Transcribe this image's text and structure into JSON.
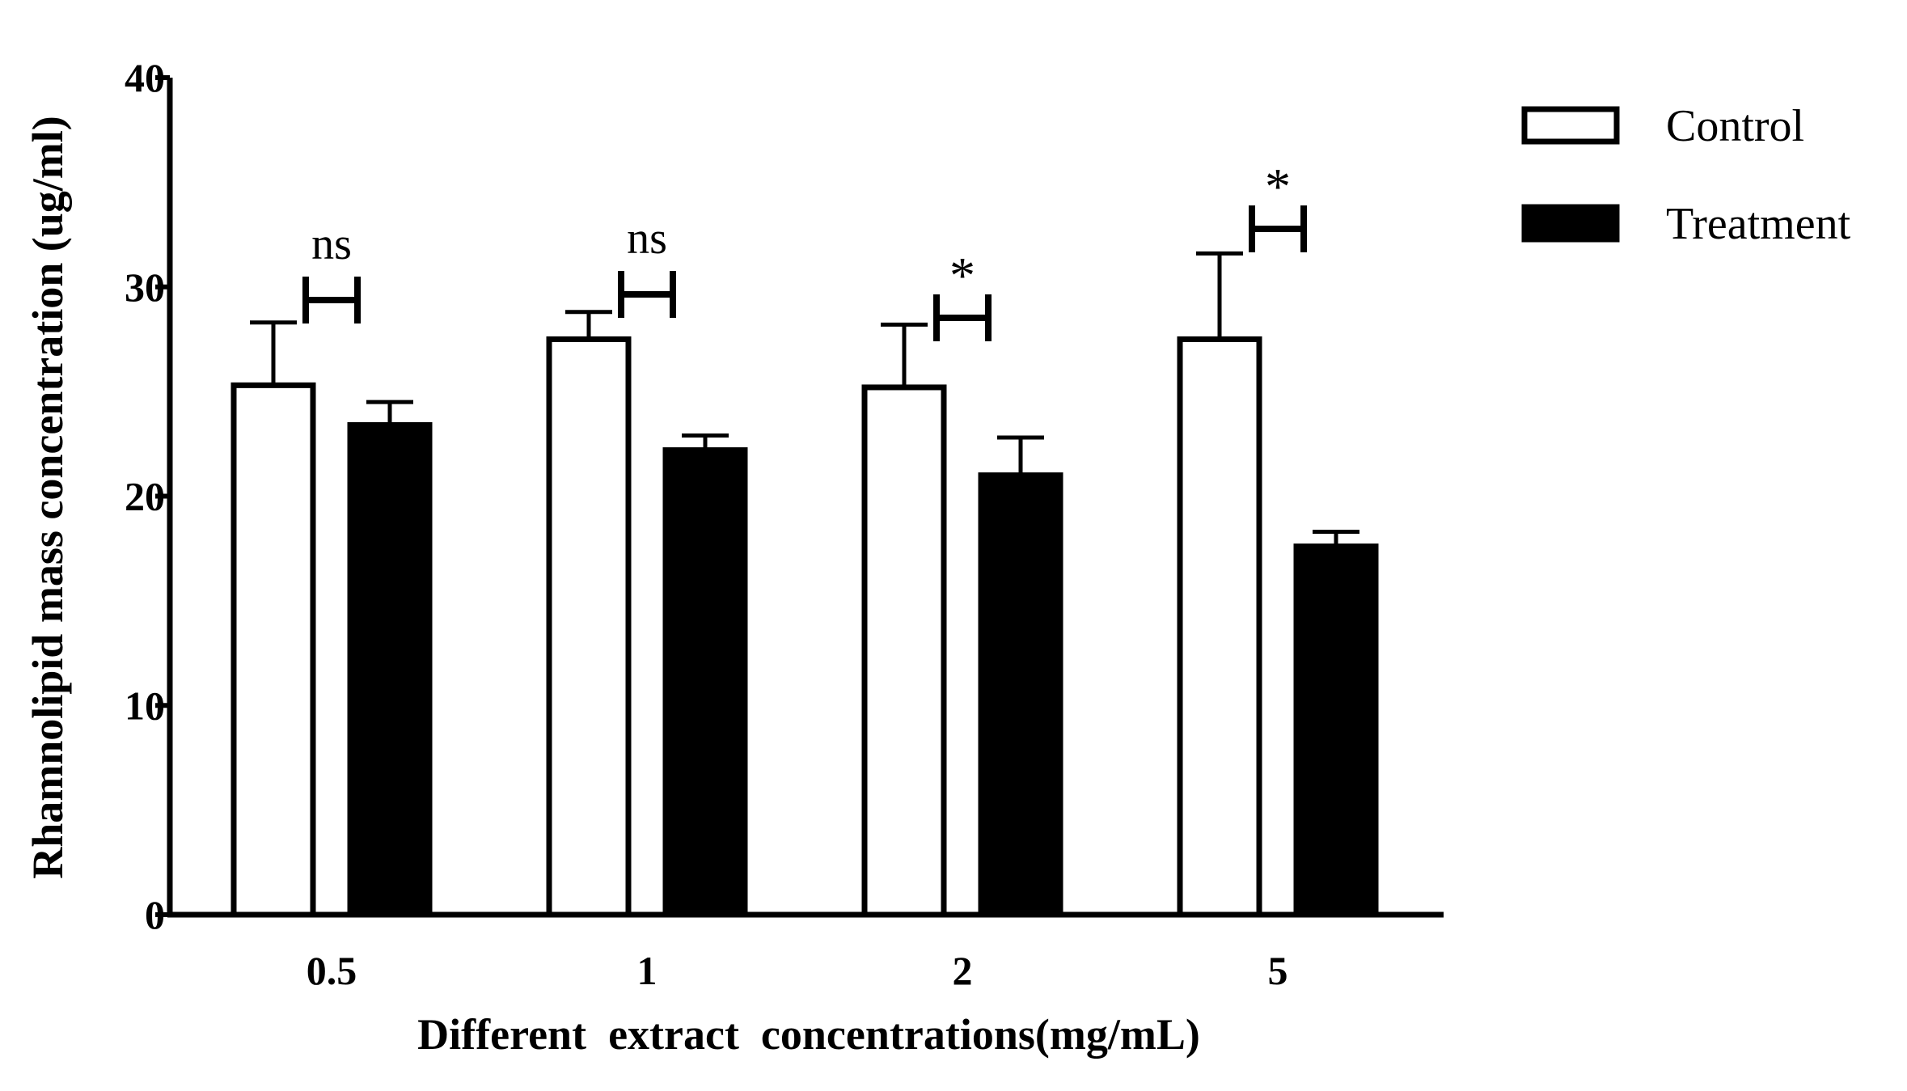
{
  "chart_data": {
    "type": "bar",
    "title": "",
    "xlabel": "Different  extract  concentrations(mg/mL)",
    "ylabel": "Rhamnolipid mass concentration (ug/ml)",
    "categories": [
      "0.5",
      "1",
      "2",
      "5"
    ],
    "ylim": [
      0,
      40
    ],
    "yticks": [
      0,
      10,
      20,
      30,
      40
    ],
    "series": [
      {
        "name": "Control",
        "values": [
          25.3,
          27.5,
          25.2,
          27.5
        ],
        "errors": [
          3.0,
          1.3,
          3.0,
          4.1
        ],
        "fill": "#ffffff",
        "stroke": "#000000"
      },
      {
        "name": "Treatment",
        "values": [
          23.4,
          22.2,
          21.0,
          17.6
        ],
        "errors": [
          1.1,
          0.7,
          1.8,
          0.7
        ],
        "fill": "#000000",
        "stroke": "#000000"
      }
    ],
    "significance": [
      "ns",
      "ns",
      "*",
      "*"
    ],
    "legend_position": "top-right",
    "grid": false
  }
}
